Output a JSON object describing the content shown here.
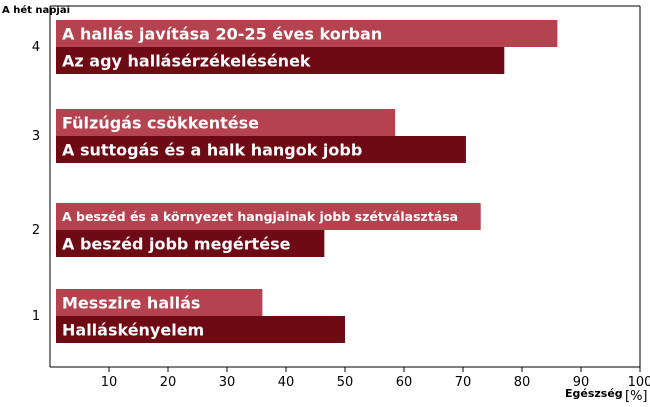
{
  "chart_data": {
    "type": "bar",
    "orientation": "horizontal",
    "categories": [
      "1",
      "2",
      "3",
      "4"
    ],
    "series": [
      {
        "role": "top",
        "color": "#b4434f",
        "values": [
          36,
          73,
          58.5,
          86
        ],
        "labels": [
          "Messzire hallás",
          "A beszéd és a környezet hangjainak jobb szétválasztása",
          "Fülzúgás csökkentése",
          "A hallás javítása 20-25 éves korban"
        ]
      },
      {
        "role": "bottom",
        "color": "#6e0a14",
        "values": [
          50,
          46.5,
          70.5,
          77
        ],
        "labels": [
          "Halláskényelem",
          "A beszéd jobb megértése",
          "A suttogás és a halk hangok jobb",
          "Az agy hallásérzékelésének"
        ]
      }
    ],
    "ylabel": "A hét napjai",
    "xlabel_main": "Egészség",
    "xlabel_unit": "[%]",
    "xlim": [
      0,
      100
    ],
    "xticks": [
      10,
      20,
      30,
      40,
      50,
      60,
      70,
      80,
      90,
      100
    ],
    "grid": false,
    "legend": "none"
  }
}
